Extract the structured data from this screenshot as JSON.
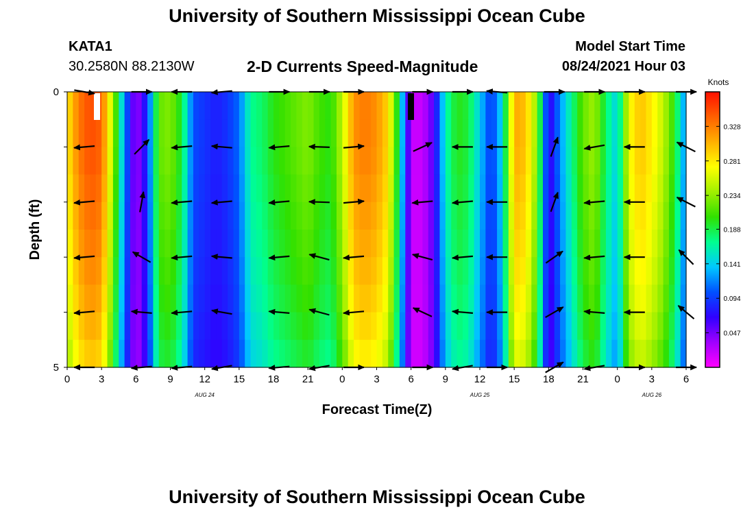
{
  "page": {
    "title_top": "University of Southern Mississippi Ocean Cube",
    "title_bottom": "University of Southern Mississippi Ocean Cube"
  },
  "station": {
    "id": "KATA1",
    "coords": "30.2580N  88.2130W"
  },
  "model": {
    "label": "Model Start Time",
    "time": "08/24/2021 Hour 03"
  },
  "colorbar": {
    "unit": "Knots",
    "ticks": [
      "0.328",
      "0.281",
      "0.234",
      "0.188",
      "0.141",
      "0.094",
      "0.047"
    ],
    "tick_values": [
      0.328,
      0.281,
      0.234,
      0.188,
      0.141,
      0.094,
      0.047
    ],
    "range": [
      0.0,
      0.375
    ],
    "colors": [
      "#ff00ff",
      "#a000ff",
      "#3000ff",
      "#0050ff",
      "#00c8ff",
      "#00ff90",
      "#30e000",
      "#a0f000",
      "#ffff00",
      "#ffb000",
      "#ff6000",
      "#ff1000"
    ]
  },
  "chart_data": {
    "type": "heatmap",
    "title": "2-D Currents Speed-Magnitude",
    "xlabel": "Forecast Time(Z)",
    "ylabel": "Depth (ft)",
    "x_tick_labels": [
      "0",
      "3",
      "6",
      "9",
      "12",
      "15",
      "18",
      "21",
      "0",
      "3",
      "6",
      "9",
      "12",
      "15",
      "18",
      "21",
      "0",
      "3",
      "6"
    ],
    "x_hours": [
      0,
      3,
      6,
      9,
      12,
      15,
      18,
      21,
      24,
      27,
      30,
      33,
      36,
      39,
      42,
      45,
      48,
      51,
      54
    ],
    "date_labels": [
      "AUG 24",
      "AUG 25",
      "AUG 26"
    ],
    "date_hours": [
      12,
      36,
      51
    ],
    "y_tick_labels": [
      "0",
      "5"
    ],
    "ylim": [
      0,
      5
    ],
    "speed_profile": {
      "hours": [
        0,
        1,
        2,
        3,
        4,
        5,
        6,
        7,
        8,
        9,
        10,
        11,
        12,
        13,
        14,
        15,
        16,
        17,
        18,
        19,
        20,
        21,
        22,
        23,
        24,
        25,
        26,
        27,
        28,
        29,
        30,
        31,
        32,
        33,
        34,
        35,
        36,
        37,
        38,
        39,
        40,
        41,
        42,
        43,
        44,
        45,
        46,
        47,
        48,
        49,
        50,
        51,
        52,
        53,
        54
      ],
      "speed_knots": [
        0.28,
        0.33,
        0.35,
        0.34,
        0.24,
        0.12,
        0.03,
        0.09,
        0.22,
        0.23,
        0.19,
        0.1,
        0.09,
        0.08,
        0.09,
        0.11,
        0.17,
        0.18,
        0.2,
        0.21,
        0.22,
        0.23,
        0.21,
        0.2,
        0.25,
        0.32,
        0.33,
        0.32,
        0.29,
        0.17,
        0.02,
        0.02,
        0.06,
        0.16,
        0.2,
        0.19,
        0.14,
        0.09,
        0.15,
        0.31,
        0.3,
        0.23,
        0.06,
        0.12,
        0.17,
        0.22,
        0.24,
        0.18,
        0.14,
        0.27,
        0.3,
        0.28,
        0.25,
        0.2,
        0.11
      ],
      "depth_factor_ft": [
        0,
        1,
        2,
        3,
        4,
        5
      ],
      "depth_factor": [
        1.0,
        1.0,
        0.97,
        0.94,
        0.9,
        0.84
      ]
    },
    "vectors": {
      "depths_ft": [
        0,
        1,
        2,
        3,
        4,
        5
      ],
      "hours": [
        1.5,
        6.5,
        10,
        13.5,
        18.5,
        22,
        25,
        31,
        34.5,
        37.5,
        42.5,
        46,
        49.5,
        54
      ],
      "angles_deg": [
        [
          -10,
          0,
          180,
          185,
          0,
          0,
          0,
          0,
          0,
          175,
          0,
          0,
          0,
          0
        ],
        [
          185,
          45,
          185,
          175,
          185,
          178,
          5,
          25,
          180,
          180,
          70,
          190,
          180,
          153
        ],
        [
          185,
          80,
          185,
          185,
          185,
          178,
          5,
          185,
          185,
          180,
          70,
          185,
          180,
          153
        ],
        [
          185,
          150,
          185,
          175,
          185,
          165,
          185,
          165,
          185,
          180,
          35,
          185,
          180,
          135
        ],
        [
          185,
          175,
          185,
          170,
          175,
          165,
          185,
          155,
          175,
          180,
          30,
          175,
          180,
          140
        ],
        [
          180,
          185,
          185,
          190,
          185,
          190,
          0,
          0,
          190,
          0,
          30,
          190,
          0,
          0
        ]
      ]
    }
  }
}
